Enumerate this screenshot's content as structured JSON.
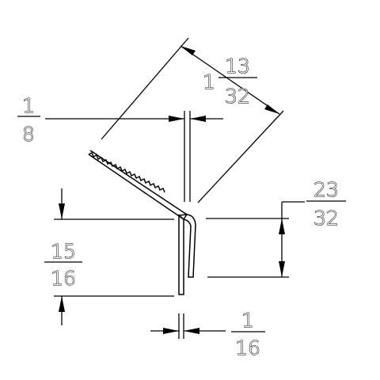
{
  "dimensions": {
    "top_gap": {
      "numerator": "1",
      "denominator": "8"
    },
    "fin_length": {
      "whole": "1",
      "numerator": "13",
      "denominator": "32"
    },
    "return_leg": {
      "numerator": "23",
      "denominator": "32"
    },
    "leg_height": {
      "numerator": "15",
      "denominator": "16"
    },
    "thickness": {
      "numerator": "1",
      "denominator": "16"
    }
  }
}
